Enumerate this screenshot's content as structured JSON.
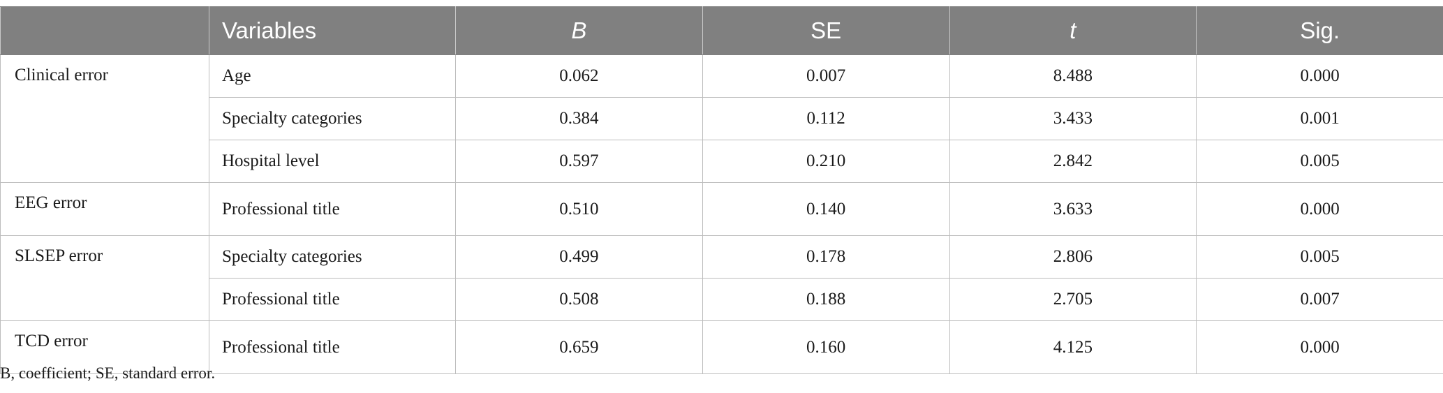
{
  "table": {
    "headers": [
      "",
      "Variables",
      "B",
      "SE",
      "t",
      "Sig."
    ],
    "groups": [
      {
        "name": "Clinical error",
        "rows": [
          {
            "variable": "Age",
            "B": "0.062",
            "SE": "0.007",
            "t": "8.488",
            "sig": "0.000"
          },
          {
            "variable": "Specialty categories",
            "B": "0.384",
            "SE": "0.112",
            "t": "3.433",
            "sig": "0.001"
          },
          {
            "variable": "Hospital level",
            "B": "0.597",
            "SE": "0.210",
            "t": "2.842",
            "sig": "0.005"
          }
        ]
      },
      {
        "name": "EEG error",
        "rows": [
          {
            "variable": "Professional title",
            "B": "0.510",
            "SE": "0.140",
            "t": "3.633",
            "sig": "0.000"
          }
        ]
      },
      {
        "name": "SLSEP error",
        "rows": [
          {
            "variable": "Specialty categories",
            "B": "0.499",
            "SE": "0.178",
            "t": "2.806",
            "sig": "0.005"
          },
          {
            "variable": "Professional title",
            "B": "0.508",
            "SE": "0.188",
            "t": "2.705",
            "sig": "0.007"
          }
        ]
      },
      {
        "name": "TCD error",
        "rows": [
          {
            "variable": "Professional title",
            "B": "0.659",
            "SE": "0.160",
            "t": "4.125",
            "sig": "0.000"
          }
        ]
      }
    ]
  },
  "footnote": "B, coefficient; SE, standard error."
}
